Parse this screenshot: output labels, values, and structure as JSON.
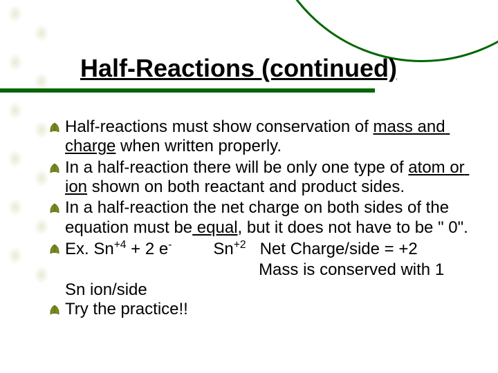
{
  "slide": {
    "title": "Half-Reactions (continued)",
    "colors": {
      "accent_green": "#006600",
      "leaf_tint": "#b8b862",
      "text": "#000000",
      "background": "#ffffff"
    },
    "bullets": [
      {
        "parts": [
          {
            "t": "Half-reactions must show conservation of "
          },
          {
            "t": "mass and charge",
            "u": true
          },
          {
            "t": " when written properly."
          }
        ]
      },
      {
        "parts": [
          {
            "t": "In a half-reaction there will be only one type of "
          },
          {
            "t": "atom or ion",
            "u": true
          },
          {
            "t": " shown on both reactant and product sides."
          }
        ]
      },
      {
        "parts": [
          {
            "t": "In a half-reaction the net charge on both sides of the equation"
          },
          {
            "t": " must be"
          },
          {
            "t": " equal",
            "u": true
          },
          {
            "t": ", but it does not have to be \" 0\"."
          }
        ]
      },
      {
        "parts": [
          {
            "t": "Ex. Sn"
          },
          {
            "t": "+4",
            "sup": true
          },
          {
            "t": " + 2 e"
          },
          {
            "t": "-",
            "sup": true
          },
          {
            "t": "         Sn"
          },
          {
            "t": "+2",
            "sup": true
          },
          {
            "t": "   Net Charge/side = +2"
          }
        ],
        "tail": "                                          Mass is conserved with 1                                          Sn ion/side"
      },
      {
        "parts": [
          {
            "t": "Try the practice!!"
          }
        ]
      }
    ]
  }
}
